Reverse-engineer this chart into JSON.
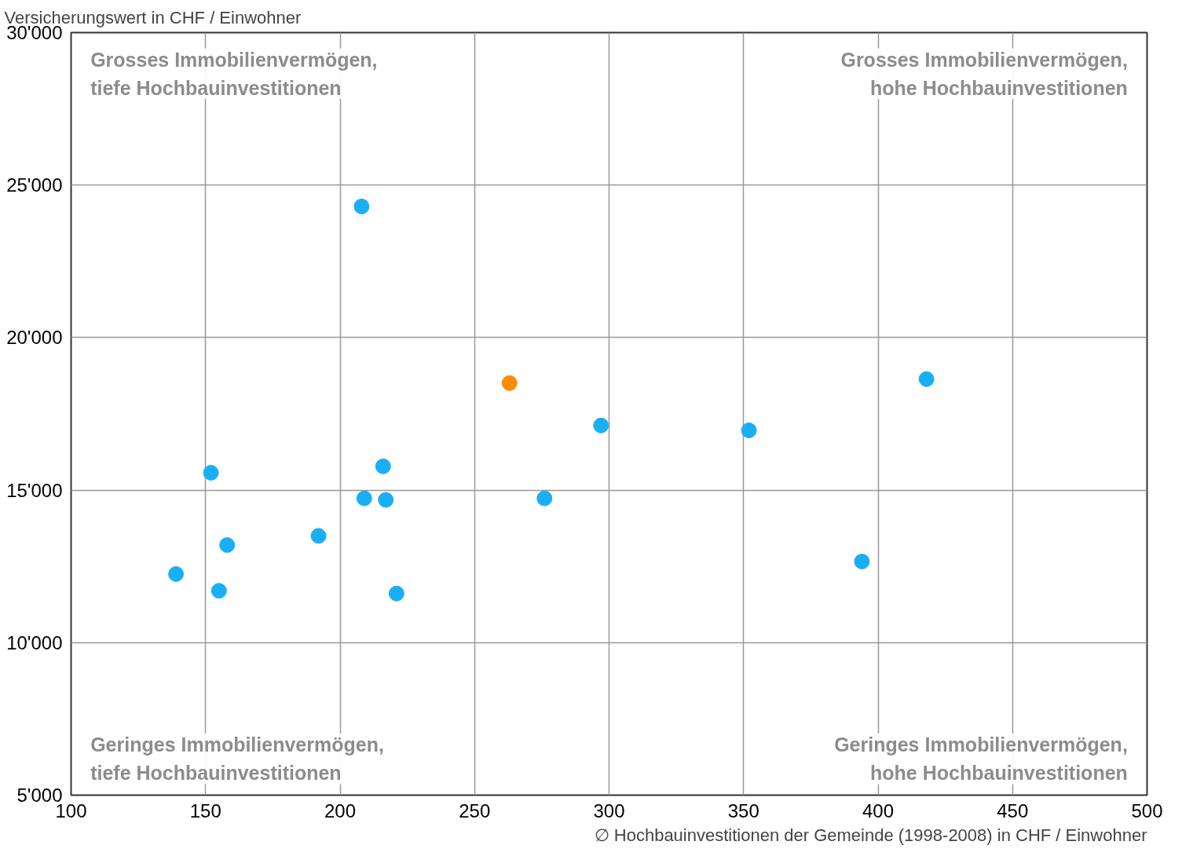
{
  "chart_data": {
    "type": "scatter",
    "xlabel": "∅ Hochbauinvestitionen der Gemeinde (1998-2008) in CHF / Einwohner",
    "ylabel": "Versicherungswert in CHF / Einwohner",
    "annotations": [
      "Grosses Immobilienvermögen,\ntiefe Hochbauinvestitionen",
      "Grosses Immobilienvermögen,\nhohe Hochbauinvestitionen",
      "Geringes Immobilienvermögen,\ntiefe Hochbauinvestitionen",
      "Geringes Immobilienvermögen,\nhohe Hochbauinvestitionen"
    ],
    "series": [
      {
        "color": "#1aaff5",
        "x": [
          139,
          152,
          155,
          158,
          192,
          208,
          209,
          216,
          217,
          221,
          276,
          297,
          352,
          394,
          418
        ],
        "values": [
          12250,
          15570,
          11700,
          13200,
          13500,
          24300,
          14730,
          15780,
          14680,
          11610,
          14730,
          17120,
          16960,
          12660,
          18640
        ]
      },
      {
        "color": "#ff8c00",
        "x": [
          263
        ],
        "values": [
          18510
        ]
      }
    ],
    "xlim": [
      100,
      500
    ],
    "xticks": [
      100,
      150,
      200,
      250,
      300,
      350,
      400,
      450,
      500
    ],
    "ylim": [
      5000,
      30000
    ],
    "yticks": [
      {
        "value": 5000,
        "label": "5'000"
      },
      {
        "value": 10000,
        "label": "10'000"
      },
      {
        "value": 15000,
        "label": "15'000"
      },
      {
        "value": 20000,
        "label": "20'000"
      },
      {
        "value": 25000,
        "label": "25'000"
      },
      {
        "value": 30000,
        "label": "30'000"
      }
    ],
    "grid": true,
    "marker": "circle"
  }
}
